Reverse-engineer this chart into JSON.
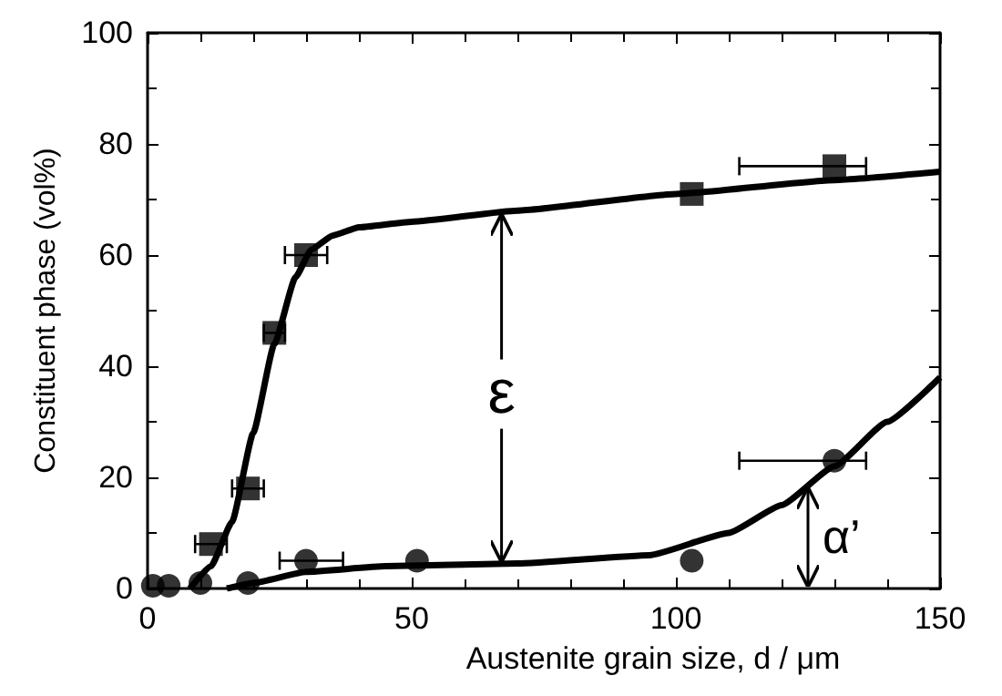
{
  "chart_data": {
    "type": "scatter",
    "xlabel": "Austenite grain size, d / μm",
    "ylabel": "Constituent phase (vol%)",
    "xlim": [
      0,
      150
    ],
    "xticks": [
      0,
      50,
      100,
      150
    ],
    "ylim": [
      0,
      100
    ],
    "yticks": [
      0,
      20,
      40,
      60,
      80,
      100
    ],
    "grid": false,
    "series": [
      {
        "marker": "square",
        "color": "#000000",
        "x": [
          12,
          19,
          24,
          30,
          103,
          130
        ],
        "values": [
          8,
          18,
          46,
          60,
          71,
          76
        ],
        "xerrors": [
          3,
          3,
          2,
          4,
          null,
          [
            112,
            136
          ]
        ]
      },
      {
        "marker": "circle",
        "color": "#000000",
        "x": [
          1,
          4,
          10,
          19,
          30,
          51,
          103,
          130
        ],
        "values": [
          0.5,
          0.5,
          1,
          1,
          5,
          5,
          5,
          23
        ],
        "xerrors": [
          null,
          null,
          null,
          null,
          [
            25,
            37
          ],
          null,
          null,
          [
            112,
            136
          ]
        ]
      },
      {
        "type": "line",
        "marker": "none",
        "color": "#000000",
        "x": [
          8,
          12,
          16,
          20,
          24,
          28,
          31,
          35,
          40,
          50,
          70,
          100,
          130,
          150
        ],
        "values": [
          0,
          4,
          12,
          28,
          44,
          56,
          61,
          63.5,
          65,
          66,
          68,
          71,
          73.5,
          75
        ]
      },
      {
        "type": "line",
        "marker": "none",
        "color": "#000000",
        "x": [
          15,
          20,
          30,
          45,
          70,
          95,
          110,
          120,
          130,
          140,
          150
        ],
        "values": [
          0,
          1,
          3,
          4,
          4.5,
          6,
          10,
          15,
          22,
          30,
          38
        ]
      }
    ],
    "annotations": [
      {
        "text": "ε",
        "x": 67,
        "y": 35
      },
      {
        "text": "α’",
        "x": 125,
        "y": 18.5
      }
    ]
  }
}
